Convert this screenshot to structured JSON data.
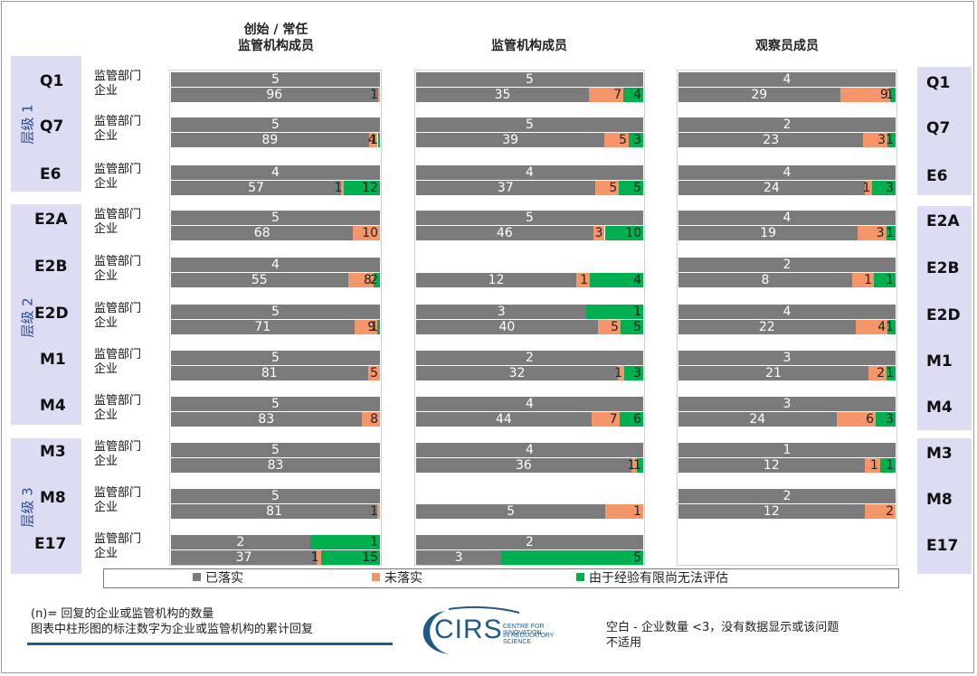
{
  "columns": [
    {
      "title_line1": "创始 / 常任",
      "title_line2": "监管机构成员"
    },
    {
      "title_line1": "",
      "title_line2": "监管机构成员"
    },
    {
      "title_line1": "",
      "title_line2": "观察员成员"
    }
  ],
  "tiers": [
    {
      "label": "层级 1",
      "questions": [
        "Q1",
        "Q7",
        "E6"
      ]
    },
    {
      "label": "层级 2",
      "questions": [
        "E2A",
        "E2B",
        "E2D",
        "M1",
        "M4"
      ]
    },
    {
      "label": "层级 3",
      "questions": [
        "M3",
        "M8",
        "E17"
      ]
    }
  ],
  "row_labels": {
    "agency": "监管部门",
    "company": "企业"
  },
  "legend": {
    "implemented": "已落实",
    "not_implemented": "未落实",
    "no_experience": "由于经验有限尚无法评估"
  },
  "colors": {
    "implemented": "#7b7b7b",
    "not_implemented": "#f4956a",
    "no_experience": "#00b050"
  },
  "notes": {
    "left_line1": "(n)= 回复的企业或监管机构的数量",
    "left_line2": "图表中柱形图的标注数字为企业或监管机构的累计回复",
    "right_line1": "空白 - 企业数量 <3，没有数据显示或该问题",
    "right_line2": "不适用"
  },
  "logo": {
    "text": "CIRS",
    "sub1": "CENTRE FOR INNOVATION",
    "sub2": "IN REGULATORY SCIENCE"
  },
  "chart_data": {
    "type": "bar",
    "stacked": true,
    "normalized_100_percent": true,
    "categories": [
      "Q1",
      "Q7",
      "E6",
      "E2A",
      "E2B",
      "E2D",
      "M1",
      "M4",
      "M3",
      "M8",
      "E17"
    ],
    "series_names": [
      "已落实",
      "未落实",
      "由于经验有限尚无法评估"
    ],
    "panels": [
      {
        "agency": [
          [
            5,
            0,
            0
          ],
          [
            5,
            0,
            0
          ],
          [
            4,
            0,
            0
          ],
          [
            5,
            0,
            0
          ],
          [
            4,
            0,
            0
          ],
          [
            5,
            0,
            0
          ],
          [
            5,
            0,
            0
          ],
          [
            5,
            0,
            0
          ],
          [
            5,
            0,
            0
          ],
          [
            5,
            0,
            0
          ],
          [
            2,
            0,
            1
          ]
        ],
        "company": [
          [
            96,
            1,
            0
          ],
          [
            89,
            4,
            1
          ],
          [
            57,
            1,
            12
          ],
          [
            68,
            10,
            0
          ],
          [
            55,
            8,
            2
          ],
          [
            71,
            9,
            1
          ],
          [
            81,
            5,
            0
          ],
          [
            83,
            8,
            0
          ],
          [
            83,
            0,
            0
          ],
          [
            81,
            1,
            0
          ],
          [
            37,
            1,
            15
          ]
        ]
      },
      {
        "agency": [
          [
            5,
            0,
            0
          ],
          [
            5,
            0,
            0
          ],
          [
            4,
            0,
            0
          ],
          [
            5,
            0,
            0
          ],
          [
            null,
            null,
            null
          ],
          [
            3,
            0,
            1
          ],
          [
            2,
            0,
            0
          ],
          [
            4,
            0,
            0
          ],
          [
            4,
            0,
            0
          ],
          [
            null,
            null,
            null
          ],
          [
            2,
            0,
            0
          ]
        ],
        "company": [
          [
            35,
            7,
            4
          ],
          [
            39,
            5,
            3
          ],
          [
            37,
            5,
            5
          ],
          [
            46,
            3,
            10
          ],
          [
            12,
            1,
            4
          ],
          [
            40,
            5,
            5
          ],
          [
            32,
            1,
            3
          ],
          [
            44,
            7,
            6
          ],
          [
            36,
            1,
            1
          ],
          [
            5,
            1,
            0
          ],
          [
            3,
            0,
            5
          ]
        ]
      },
      {
        "agency": [
          [
            4,
            0,
            0
          ],
          [
            2,
            0,
            0
          ],
          [
            4,
            0,
            0
          ],
          [
            4,
            0,
            0
          ],
          [
            2,
            0,
            0
          ],
          [
            4,
            0,
            0
          ],
          [
            3,
            0,
            0
          ],
          [
            3,
            0,
            0
          ],
          [
            1,
            0,
            0
          ],
          [
            2,
            0,
            0
          ],
          [
            null,
            null,
            null
          ]
        ],
        "company": [
          [
            29,
            9,
            1
          ],
          [
            23,
            3,
            1
          ],
          [
            24,
            1,
            3
          ],
          [
            19,
            3,
            1
          ],
          [
            8,
            1,
            1
          ],
          [
            22,
            4,
            1
          ],
          [
            21,
            2,
            1
          ],
          [
            24,
            6,
            3
          ],
          [
            12,
            1,
            1
          ],
          [
            12,
            2,
            0
          ],
          [
            null,
            null,
            null
          ]
        ]
      }
    ]
  }
}
